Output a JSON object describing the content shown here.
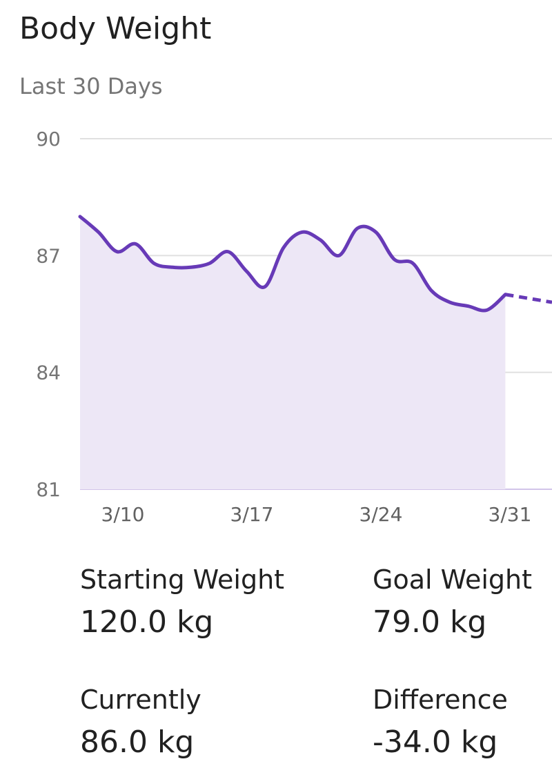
{
  "header": {
    "title": "Body Weight",
    "subtitle": "Last 30 Days"
  },
  "chart_data": {
    "type": "area",
    "title": "Body Weight",
    "subtitle": "Last 30 Days",
    "xlabel": "",
    "ylabel": "",
    "ylim": [
      81,
      90
    ],
    "yticks": [
      90,
      87,
      84,
      81
    ],
    "xtick_labels": [
      "3/10",
      "3/17",
      "3/24",
      "3/31"
    ],
    "grid": true,
    "colors": {
      "line": "#673ab7",
      "fill": "#ede7f6",
      "grid": "#e0e0e0",
      "baseline": "#d1c4e9"
    },
    "series": [
      {
        "values": [
          88.0,
          87.6,
          87.1,
          87.3,
          86.8,
          86.7,
          86.7,
          86.8,
          87.1,
          86.6,
          86.2,
          87.2,
          87.6,
          87.4,
          87.0,
          87.7,
          87.6,
          86.9,
          86.8,
          86.1,
          85.8,
          85.7,
          85.6,
          86.0
        ],
        "style": "solid"
      },
      {
        "values_projection": [
          86.0,
          85.8
        ],
        "style": "dashed"
      }
    ]
  },
  "stats": {
    "starting": {
      "label": "Starting Weight",
      "value": "120.0 kg"
    },
    "goal": {
      "label": "Goal Weight",
      "value": "79.0 kg"
    },
    "current": {
      "label": "Currently",
      "value": "86.0 kg"
    },
    "difference": {
      "label": "Difference",
      "value": "-34.0 kg"
    }
  }
}
